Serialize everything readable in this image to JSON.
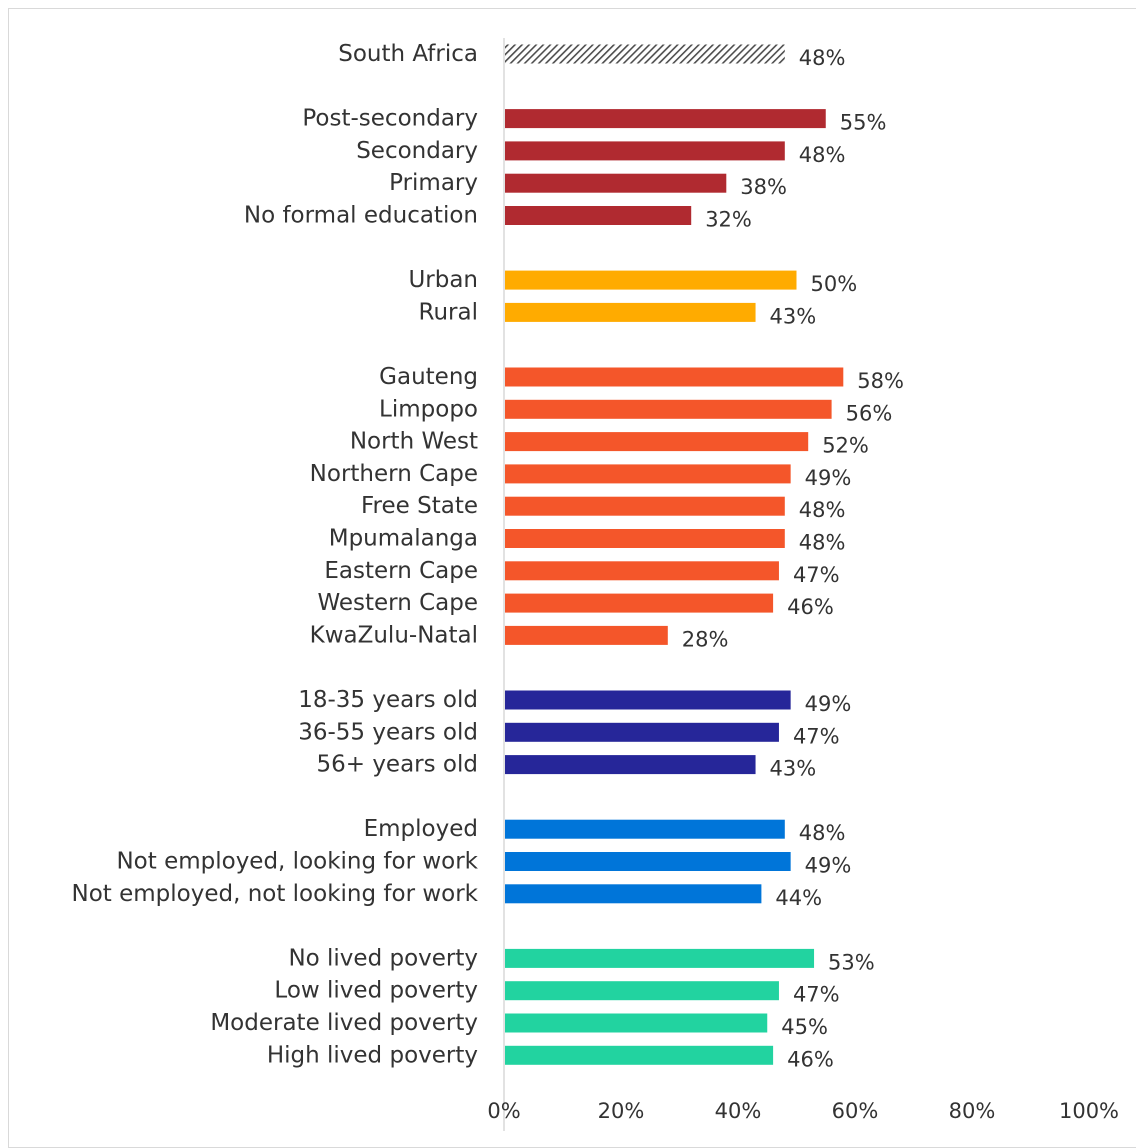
{
  "chart_data": {
    "type": "bar",
    "orientation": "horizontal",
    "title": "",
    "xlabel": "",
    "ylabel": "",
    "xlim": [
      0,
      100
    ],
    "x_ticks": [
      "0%",
      "20%",
      "40%",
      "60%",
      "80%",
      "100%"
    ],
    "value_suffix": "%",
    "grid": false,
    "legend": "none",
    "groups": [
      {
        "color": "#4d4d4d",
        "pattern": "diagonal-hatch",
        "items": [
          {
            "label": "South Africa",
            "value": 48
          }
        ]
      },
      {
        "color": "#b02a30",
        "items": [
          {
            "label": "Post-secondary",
            "value": 55
          },
          {
            "label": "Secondary",
            "value": 48
          },
          {
            "label": "Primary",
            "value": 38
          },
          {
            "label": "No formal education",
            "value": 32
          }
        ]
      },
      {
        "color": "#ffab00",
        "items": [
          {
            "label": "Urban",
            "value": 50
          },
          {
            "label": "Rural",
            "value": 43
          }
        ]
      },
      {
        "color": "#f4562a",
        "items": [
          {
            "label": "Gauteng",
            "value": 58
          },
          {
            "label": "Limpopo",
            "value": 56
          },
          {
            "label": "North West",
            "value": 52
          },
          {
            "label": "Northern Cape",
            "value": 49
          },
          {
            "label": "Free State",
            "value": 48
          },
          {
            "label": "Mpumalanga",
            "value": 48
          },
          {
            "label": "Eastern Cape",
            "value": 47
          },
          {
            "label": "Western Cape",
            "value": 46
          },
          {
            "label": "KwaZulu-Natal",
            "value": 28
          }
        ]
      },
      {
        "color": "#262699",
        "items": [
          {
            "label": "18-35 years old",
            "value": 49
          },
          {
            "label": "36-55 years old",
            "value": 47
          },
          {
            "label": "56+ years old",
            "value": 43
          }
        ]
      },
      {
        "color": "#0075d9",
        "items": [
          {
            "label": "Employed",
            "value": 48
          },
          {
            "label": "Not employed, looking for work",
            "value": 49
          },
          {
            "label": "Not employed, not looking for work",
            "value": 44
          }
        ]
      },
      {
        "color": "#22d3a0",
        "items": [
          {
            "label": "No lived poverty",
            "value": 53
          },
          {
            "label": "Low lived poverty",
            "value": 47
          },
          {
            "label": "Moderate lived poverty",
            "value": 45
          },
          {
            "label": "High lived poverty",
            "value": 46
          }
        ]
      }
    ]
  }
}
